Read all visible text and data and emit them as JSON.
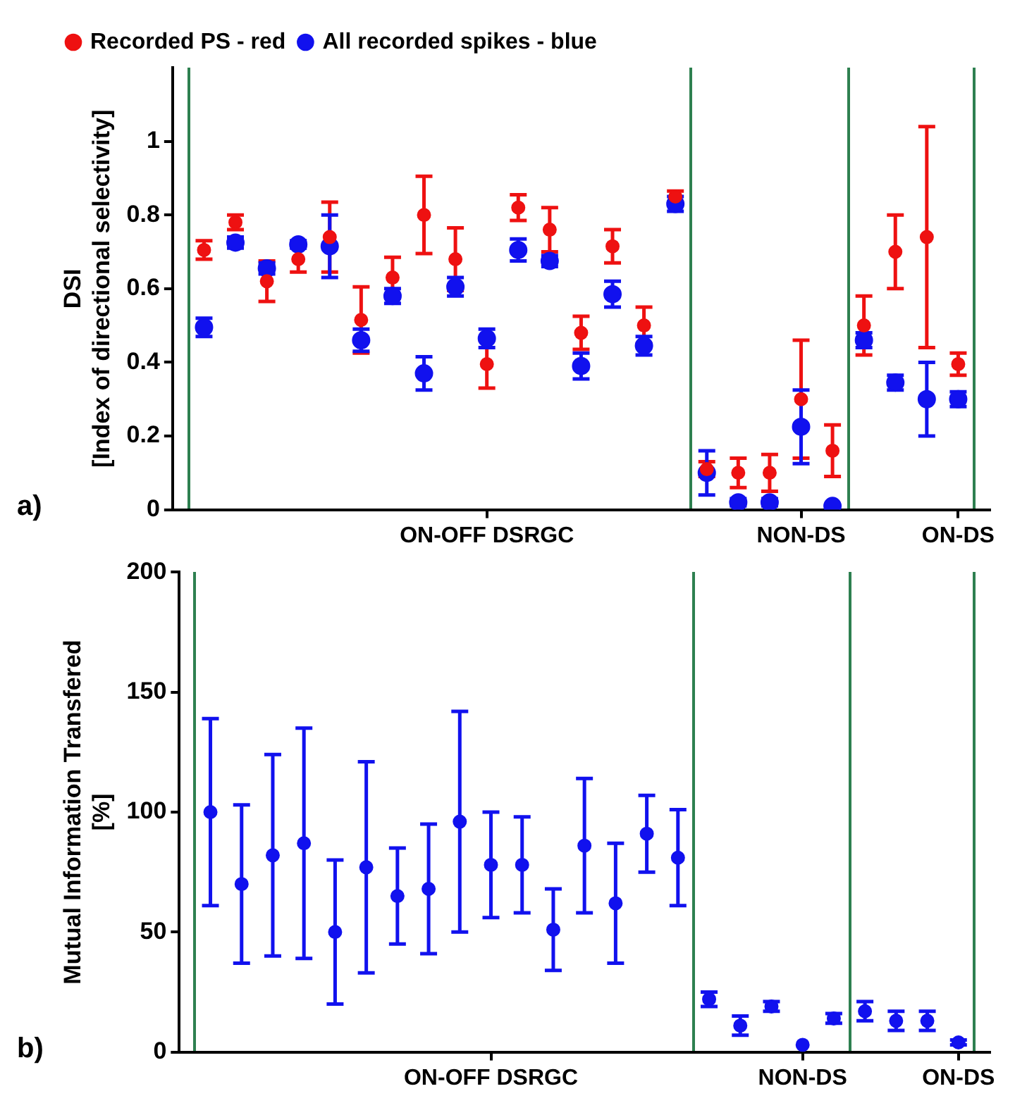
{
  "chart_data": [
    {
      "type": "scatter",
      "ylabel": "DSI\n[Index of directional selectivity]",
      "annotations": [
        "a)"
      ],
      "legend": "top left",
      "marker": "circle",
      "categories": [
        null,
        null,
        null,
        null,
        null,
        null,
        null,
        null,
        null,
        "ON-OFF DSRGC",
        null,
        null,
        null,
        null,
        null,
        null,
        null,
        null,
        null,
        "NON-DS",
        null,
        null,
        null,
        null,
        "ON-DS"
      ],
      "ylim": [
        0,
        1.2
      ],
      "yticks": [
        0,
        0.2,
        0.4,
        0.6,
        0.8,
        1
      ],
      "series": [
        {
          "name": "Recorded PS - red",
          "color": "#ee1111",
          "values": [
            0.705,
            0.78,
            0.62,
            0.68,
            0.74,
            0.515,
            0.63,
            0.8,
            0.68,
            0.395,
            0.82,
            0.76,
            0.48,
            0.715,
            0.5,
            0.85,
            0.11,
            0.1,
            0.1,
            0.3,
            0.16,
            0.5,
            0.7,
            0.74,
            0.395
          ],
          "errors": [
            0.025,
            0.02,
            0.055,
            0.035,
            0.095,
            0.09,
            0.055,
            0.105,
            0.085,
            0.065,
            0.035,
            0.06,
            0.045,
            0.045,
            0.05,
            0.015,
            0.02,
            0.04,
            0.05,
            0.16,
            0.07,
            0.08,
            0.1,
            0.3,
            0.03
          ]
        },
        {
          "name": "All recorded spikes - blue",
          "color": "#1111ee",
          "values": [
            0.495,
            0.725,
            0.655,
            0.72,
            0.715,
            0.46,
            0.58,
            0.37,
            0.605,
            0.465,
            0.705,
            0.675,
            0.39,
            0.585,
            0.445,
            0.83,
            0.1,
            0.02,
            0.02,
            0.225,
            0.01,
            0.46,
            0.345,
            0.3,
            0.3
          ],
          "errors": [
            0.025,
            0.015,
            0.015,
            0.01,
            0.085,
            0.03,
            0.02,
            0.045,
            0.025,
            0.025,
            0.03,
            0.015,
            0.035,
            0.035,
            0.025,
            0.02,
            0.06,
            0.01,
            0.01,
            0.1,
            null,
            0.02,
            0.02,
            0.1,
            0.02
          ]
        }
      ]
    },
    {
      "type": "scatter",
      "ylabel": "Mutual Information Transfered\n[%]",
      "annotations": [
        "b)"
      ],
      "marker": "circle",
      "categories": [
        null,
        null,
        null,
        null,
        null,
        null,
        null,
        null,
        null,
        "ON-OFF DSRGC",
        null,
        null,
        null,
        null,
        null,
        null,
        null,
        null,
        null,
        "NON-DS",
        null,
        null,
        null,
        null,
        "ON-DS"
      ],
      "ylim": [
        0,
        200
      ],
      "yticks": [
        0,
        50,
        100,
        150,
        200
      ],
      "series": [
        {
          "color": "#1111ee",
          "values": [
            100,
            70,
            82,
            87,
            50,
            77,
            65,
            68,
            96,
            78,
            78,
            51,
            86,
            62,
            91,
            81,
            22,
            11,
            19,
            3,
            14,
            17,
            13,
            13,
            4
          ],
          "errors": [
            39,
            33,
            42,
            48,
            30,
            44,
            20,
            27,
            46,
            22,
            20,
            17,
            28,
            25,
            16,
            20,
            3,
            4,
            2,
            null,
            2,
            4,
            4,
            4,
            1
          ]
        }
      ]
    }
  ]
}
